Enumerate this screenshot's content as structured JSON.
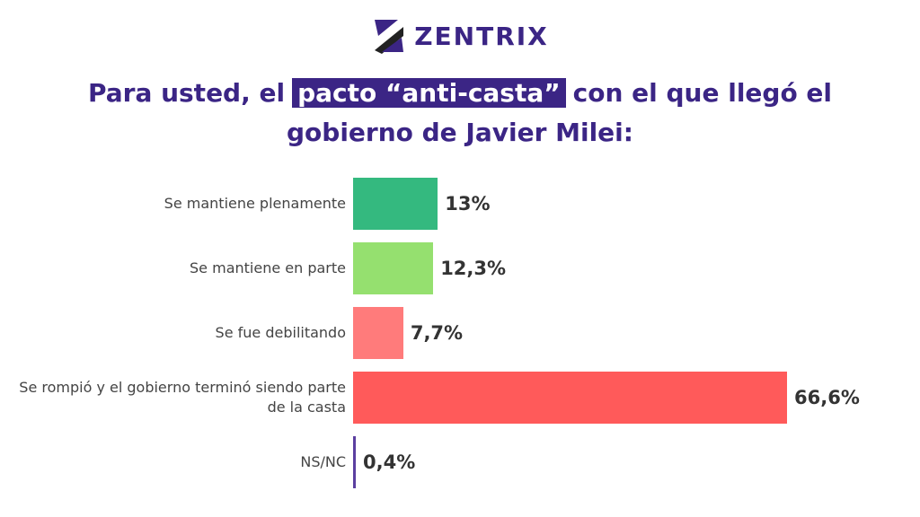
{
  "brand": "ZENTRIX",
  "chart_data": {
    "type": "bar",
    "orientation": "horizontal",
    "title_parts": [
      "Para usted, el",
      "pacto “anti-casta”",
      "con el que llegó el",
      "gobierno de Javier Milei:"
    ],
    "categories": [
      "Se mantiene plenamente",
      "Se mantiene en parte",
      "Se fue debilitando",
      "Se rompió y el gobierno terminó siendo parte de la casta",
      "NS/NC"
    ],
    "values": [
      13,
      12.3,
      7.7,
      66.6,
      0.4
    ],
    "value_labels": [
      "13%",
      "12,3%",
      "7,7%",
      "66,6%",
      "0,4%"
    ],
    "colors": [
      "#34b97f",
      "#95e06f",
      "#ff7b7b",
      "#ff5a5a",
      "#5b3fa0"
    ]
  }
}
